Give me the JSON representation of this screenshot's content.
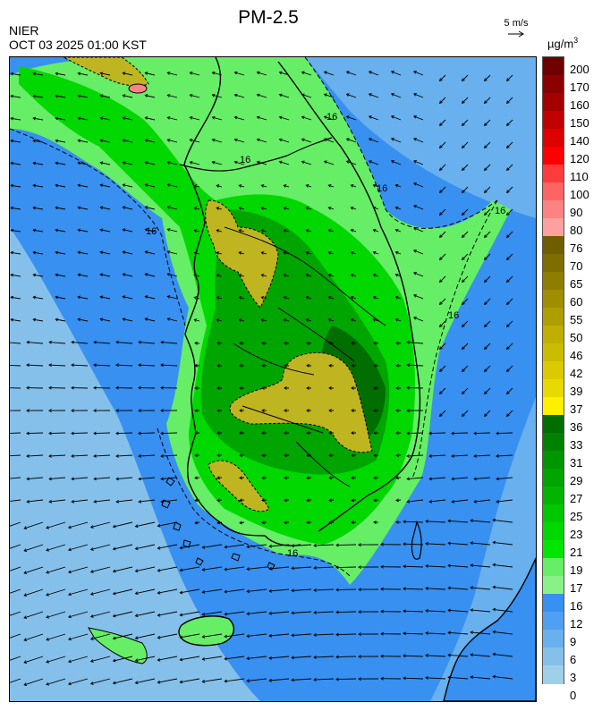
{
  "header": {
    "agency": "NIER",
    "timestamp": "OCT 03 2025 01:00 KST",
    "title": "PM-2.5",
    "wind_reference": "5 m/s",
    "unit_base": "µg/m",
    "unit_exp": "3"
  },
  "contour_labels": [
    "16",
    "16",
    "16",
    "16",
    "16",
    "16",
    "16"
  ],
  "colorbar": {
    "labels": [
      "200",
      "170",
      "160",
      "150",
      "140",
      "120",
      "110",
      "100",
      "90",
      "80",
      "76",
      "70",
      "65",
      "60",
      "55",
      "50",
      "46",
      "42",
      "39",
      "37",
      "36",
      "33",
      "31",
      "29",
      "27",
      "25",
      "23",
      "21",
      "19",
      "17",
      "16",
      "12",
      "9",
      "6",
      "3",
      "0"
    ],
    "colors": [
      "#6e0000",
      "#8c0000",
      "#a50000",
      "#c30000",
      "#de0000",
      "#ff0000",
      "#ff3c3c",
      "#ff6464",
      "#ff8282",
      "#ffa0a0",
      "#6e5e00",
      "#7e6e00",
      "#8e7e00",
      "#9e8e00",
      "#ae9e00",
      "#c0ae00",
      "#ccbc00",
      "#dcca00",
      "#e8da00",
      "#fff000",
      "#006e00",
      "#008200",
      "#009600",
      "#00a500",
      "#00b400",
      "#00c800",
      "#00d800",
      "#00e600",
      "#66ee66",
      "#88f288",
      "#3890f0",
      "#4fa0f0",
      "#68b0ee",
      "#85c0ea",
      "#9ed0ea"
    ]
  }
}
